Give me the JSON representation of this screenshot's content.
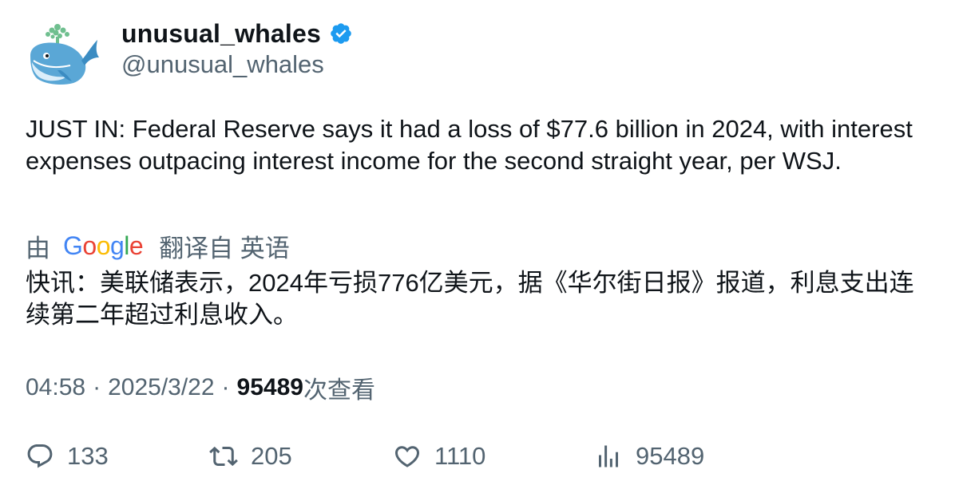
{
  "author": {
    "display_name": "unusual_whales",
    "handle": "@unusual_whales",
    "verified": true,
    "avatar_icon": "whale-avatar-icon",
    "verified_color": "#1d9bf0"
  },
  "tweet": {
    "text": "JUST IN: Federal Reserve says it had a loss of $77.6 billion in 2024, with interest expenses outpacing interest income for the second straight year, per WSJ."
  },
  "translation": {
    "by_label": "由",
    "provider": "Google",
    "from_label": "翻译自 英语",
    "text": "快讯：美联储表示，2024年亏损776亿美元，据《华尔街日报》报道，利息支出连续第二年超过利息收入。"
  },
  "meta": {
    "time": "04:58",
    "separator": "·",
    "date": "2025/3/22",
    "views_count": "95489",
    "views_suffix": "次查看"
  },
  "actions": {
    "replies": "133",
    "retweets": "205",
    "likes": "1110",
    "views": "95489"
  },
  "colors": {
    "text_primary": "#0f1419",
    "text_secondary": "#536471",
    "google_blue": "#4285F4",
    "google_red": "#EA4335",
    "google_yellow": "#FBBC05",
    "google_green": "#34A853"
  }
}
